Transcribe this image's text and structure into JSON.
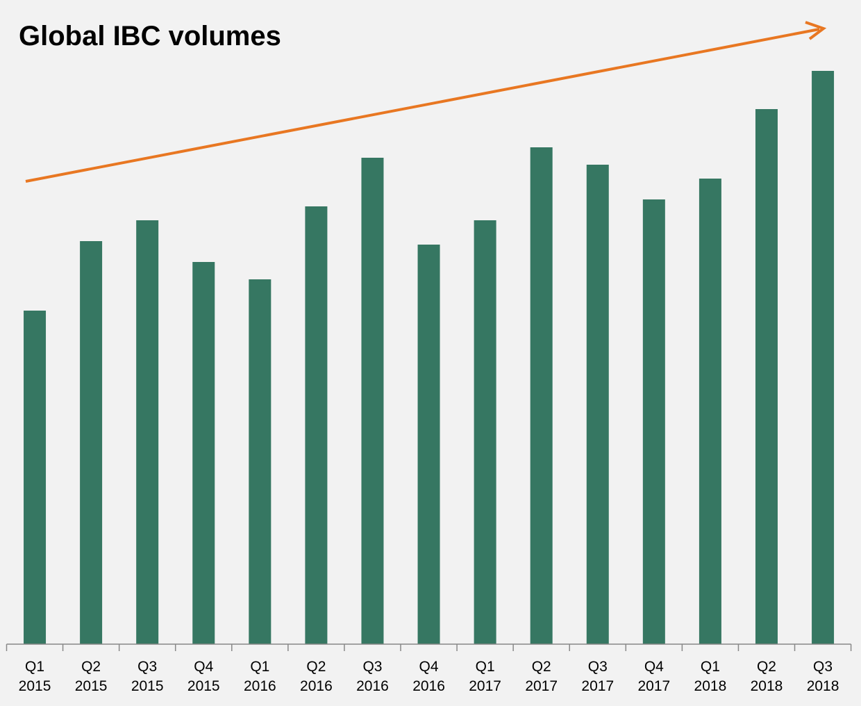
{
  "chart_data": {
    "type": "bar",
    "title": "Global IBC volumes",
    "categories": [
      "Q1 2015",
      "Q2 2015",
      "Q3 2015",
      "Q4 2015",
      "Q1 2016",
      "Q2 2016",
      "Q3 2016",
      "Q4 2016",
      "Q1 2017",
      "Q2 2017",
      "Q3 2017",
      "Q4 2017",
      "Q1 2018",
      "Q2 2018",
      "Q3 2018"
    ],
    "values": [
      48,
      58,
      61,
      55,
      52.5,
      63,
      70,
      57.5,
      61,
      71.5,
      69,
      64,
      67,
      77,
      82.5
    ],
    "color": "#367762",
    "ylim": [
      0,
      88
    ]
  }
}
